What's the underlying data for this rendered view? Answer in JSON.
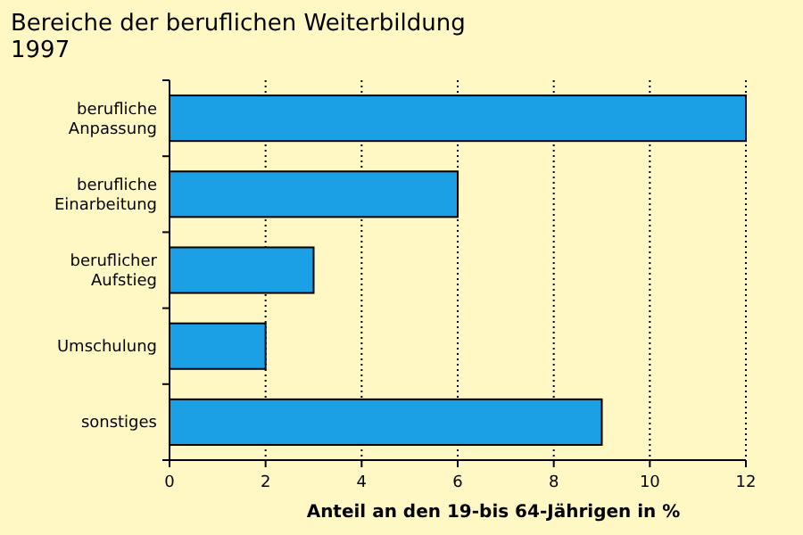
{
  "chart_data": {
    "type": "bar",
    "orientation": "horizontal",
    "title": "Bereiche der beruflichen Weiterbildung",
    "subtitle": "1997",
    "xlabel": "Anteil an den 19-bis 64-Jährigen in %",
    "categories": [
      "berufliche Anpassung",
      "berufliche Einarbeitung",
      "beruflicher Aufstieg",
      "Umschulung",
      "sonstiges"
    ],
    "values": [
      12,
      6,
      3,
      2,
      9
    ],
    "color": "#1ba0e6",
    "xlim": [
      0,
      12
    ],
    "xticks": [
      0,
      2,
      4,
      6,
      8,
      10,
      12
    ],
    "grid": "x"
  }
}
